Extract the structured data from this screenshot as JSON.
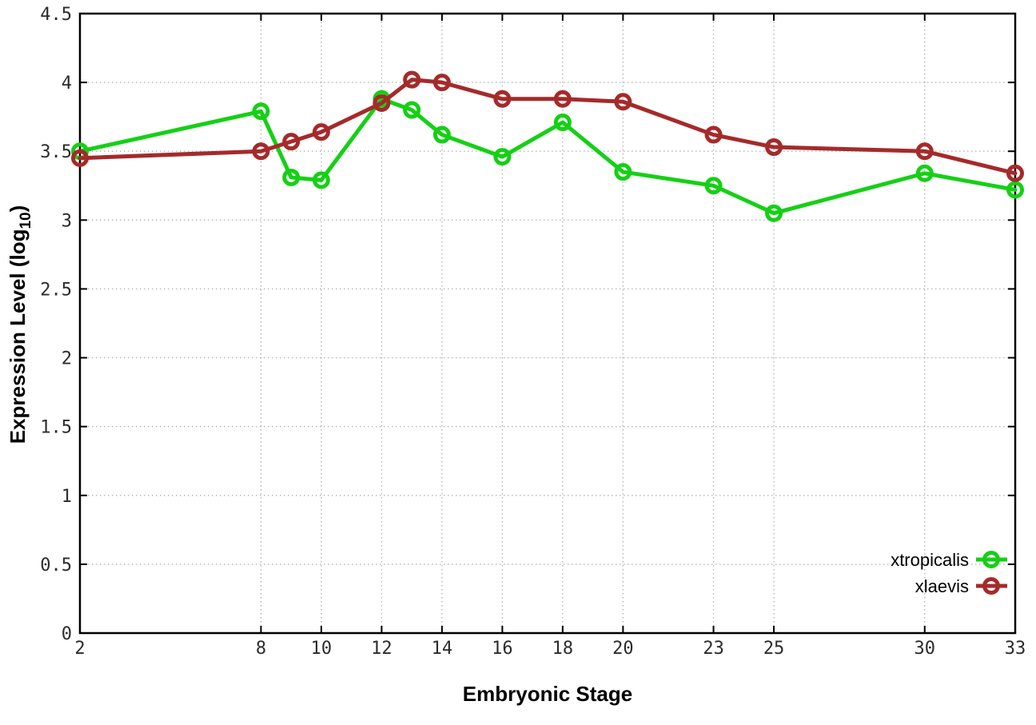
{
  "chart_data": {
    "type": "line",
    "title": "",
    "xlabel": "Embryonic Stage",
    "ylabel": "Expression Level (log10)",
    "ylabel_parts": {
      "pre": "Expression Level (log",
      "sub": "10",
      "post": ")"
    },
    "xlim": [
      2,
      33
    ],
    "ylim": [
      0,
      4.5
    ],
    "x_ticks": [
      2,
      8,
      10,
      12,
      14,
      16,
      18,
      20,
      23,
      25,
      30,
      33
    ],
    "y_ticks": [
      0,
      0.5,
      1,
      1.5,
      2,
      2.5,
      3,
      3.5,
      4,
      4.5
    ],
    "grid": true,
    "legend_position": "inside-bottom-right",
    "x": [
      2,
      8,
      9,
      10,
      12,
      13,
      14,
      16,
      18,
      20,
      23,
      25,
      30,
      33
    ],
    "series": [
      {
        "name": "xtropicalis",
        "color": "#15d015",
        "marker": "open-circle",
        "values": [
          3.5,
          3.79,
          3.31,
          3.29,
          3.88,
          3.8,
          3.62,
          3.46,
          3.71,
          3.35,
          3.25,
          3.05,
          3.34,
          3.22
        ]
      },
      {
        "name": "xlaevis",
        "color": "#a52a2a",
        "marker": "open-circle",
        "values": [
          3.45,
          3.5,
          3.57,
          3.64,
          3.85,
          4.02,
          4.0,
          3.88,
          3.88,
          3.86,
          3.62,
          3.53,
          3.5,
          3.34
        ]
      }
    ],
    "styles": {
      "background_color": "#ffffff",
      "border_color": "#000000",
      "grid_color": "#b5b5b5",
      "tick_label_color": "#2b2b2b",
      "line_width": 5,
      "marker_radius": 8.5,
      "marker_stroke_width": 5
    }
  }
}
